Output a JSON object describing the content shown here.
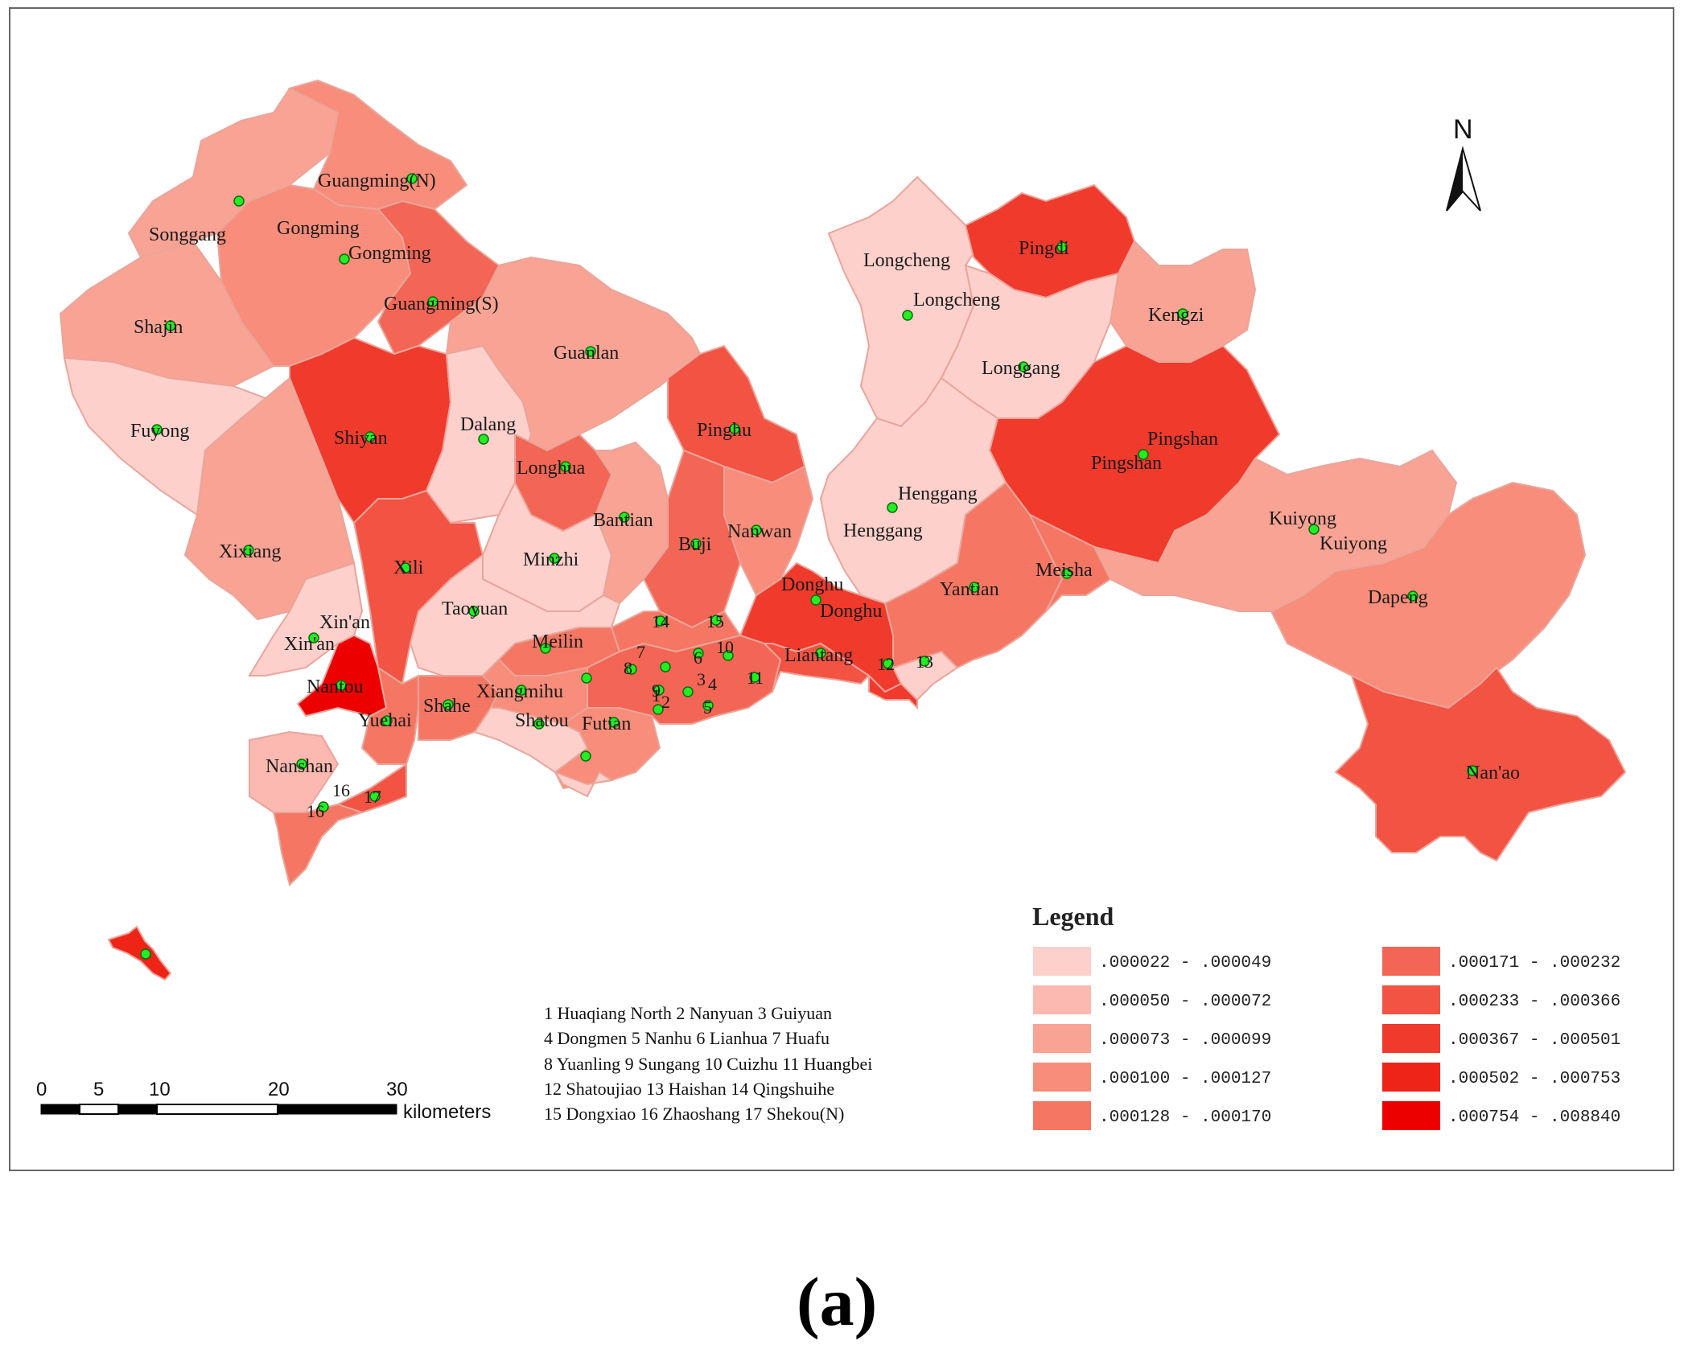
{
  "map": {
    "legend_title": "Legend",
    "legend_classes": [
      {
        "label": ".000022 - .000049",
        "color": "#fdd0cc"
      },
      {
        "label": ".000050 - .000072",
        "color": "#fbb9b1"
      },
      {
        "label": ".000073 - .000099",
        "color": "#f9a394"
      },
      {
        "label": ".000100 - .000127",
        "color": "#f78d7a"
      },
      {
        "label": ".000128 - .000170",
        "color": "#f57763"
      },
      {
        "label": ".000171 - .000232",
        "color": "#f36655"
      },
      {
        "label": ".000233 - .000366",
        "color": "#f25343"
      },
      {
        "label": ".000367 - .000501",
        "color": "#f03a2b"
      },
      {
        "label": ".000502 - .000753",
        "color": "#ee2417"
      },
      {
        "label": ".000754 - .008840",
        "color": "#ec0000"
      }
    ],
    "north_label": "N",
    "scale": {
      "ticks": [
        "0",
        "5",
        "10",
        "20",
        "30"
      ],
      "unit": "kilometers"
    },
    "key_lines": [
      "1 Huaqiang North  2 Nanyuan 3 Guiyuan",
      "4 Dongmen  5 Nanhu  6 Lianhua  7 Huafu",
      "8 Yuanling  9 Sungang  10 Cuizhu  11 Huangbei",
      "12 Shatoujiao  13 Haishan  14 Qingshuihe",
      "15 Dongxiao  16 Zhaoshang  17 Shekou(N)"
    ],
    "caption": "(a)",
    "place_labels": {
      "guangming_n": "Guangming(N)",
      "songgang": "Songgang",
      "gongming_a": "Gongming",
      "gongming_b": "Gongming",
      "guangming_s": "Guangming(S)",
      "shajin": "Shajin",
      "guanlan": "Guanlan",
      "fuyong": "Fuyong",
      "shiyan": "Shiyan",
      "dalang": "Dalang",
      "longhua": "Longhua",
      "xixiang": "Xixiang",
      "xili": "Xili",
      "minzhi": "Minzhi",
      "bantian": "Bantian",
      "buji": "Buji",
      "nanwan": "Nanwan",
      "pinghu": "Pinghu",
      "xinan_a": "Xin'an",
      "xinan_b": "Xin'an",
      "taoyuan": "Taoyuan",
      "meilin": "Meilin",
      "nantou": "Nantou",
      "yuehai": "Yuehai",
      "shahe": "Shahe",
      "xiangmihu": "Xiangmihu",
      "shatou": "Shatou",
      "futian": "Futian",
      "nanshan": "Nanshan",
      "longcheng_a": "Longcheng",
      "longcheng_b": "Longcheng",
      "pingdi": "Pingdi",
      "kengzi": "Kengzi",
      "longgang": "Longgang",
      "pingshan_a": "Pingshan",
      "pingshan_b": "Pingshan",
      "henggang_a": "Henggang",
      "henggang_b": "Henggang",
      "donghu_a": "Donghu",
      "donghu_b": "Donghu",
      "liantang": "Liantang",
      "yantian": "Yantian",
      "meisha": "Meisha",
      "kuiyong_a": "Kuiyong",
      "kuiyong_b": "Kuiyong",
      "dapeng": "Dapeng",
      "nanao": "Nan'ao",
      "n1": "1",
      "n2": "2",
      "n3": "3",
      "n4": "4",
      "n5": "5",
      "n6": "6",
      "n7": "7",
      "n8": "8",
      "n9": "9",
      "n10": "10",
      "n11": "11",
      "n12": "12",
      "n13": "13",
      "n14": "14",
      "n15": "15",
      "n16": "16",
      "n17": "17"
    }
  }
}
